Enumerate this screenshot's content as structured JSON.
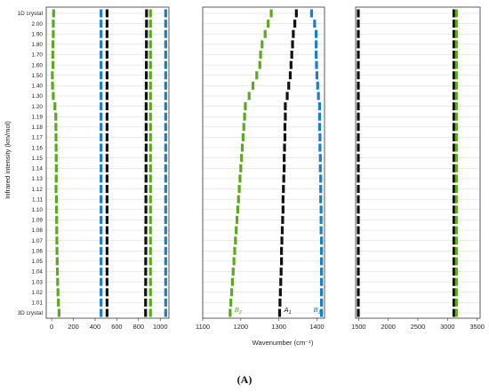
{
  "chart_data": {
    "type": "scatter",
    "ylabel": "Infrared intensity (km/mol)",
    "xlabel": "Wavenumber (cm⁻¹)",
    "caption": "(A)",
    "categories": [
      "3D crystal",
      "1.01",
      "1.02",
      "1.03",
      "1.04",
      "1.05",
      "1.06",
      "1.07",
      "1.08",
      "1.09",
      "1.10",
      "1.11",
      "1.12",
      "1.13",
      "1.14",
      "1.15",
      "1.16",
      "1.17",
      "1.18",
      "1.19",
      "1.20",
      "1.30",
      "1.40",
      "1.50",
      "1.60",
      "1.70",
      "1.80",
      "1.90",
      "2.00",
      "1D crystal"
    ],
    "colors": {
      "green": "#5aaa1e",
      "black": "#111111",
      "blue": "#1a7fc7"
    },
    "panels": [
      {
        "xlim": [
          -50,
          1080
        ],
        "xticks": [
          0,
          200,
          400,
          600,
          800,
          1000
        ],
        "series": [
          {
            "color": "green",
            "values": [
              68,
              62,
              58,
              55,
              53,
              51,
              49,
              48,
              47,
              46,
              45,
              44,
              40,
              42,
              43,
              42,
              41,
              40,
              39,
              38,
              30,
              15,
              8,
              6,
              12,
              10,
              12,
              15,
              15,
              18
            ]
          },
          {
            "color": "blue",
            "values": [
              455,
              455,
              455,
              455,
              455,
              455,
              455,
              455,
              455,
              455,
              455,
              455,
              455,
              455,
              455,
              455,
              455,
              455,
              455,
              455,
              455,
              455,
              455,
              455,
              455,
              455,
              455,
              455,
              455,
              455
            ]
          },
          {
            "color": "black",
            "values": [
              510,
              510,
              510,
              510,
              510,
              510,
              510,
              510,
              510,
              510,
              510,
              510,
              510,
              510,
              510,
              510,
              510,
              510,
              510,
              510,
              510,
              510,
              510,
              510,
              510,
              510,
              510,
              510,
              510,
              510
            ]
          },
          {
            "color": "black",
            "values": [
              865,
              865,
              865,
              866,
              866,
              866,
              867,
              867,
              867,
              868,
              868,
              868,
              868,
              869,
              869,
              869,
              870,
              870,
              870,
              870,
              870,
              871,
              871,
              872,
              872,
              873,
              873,
              873,
              874,
              874
            ]
          },
          {
            "color": "green",
            "values": [
              910,
              910,
              910,
              910,
              910,
              910,
              910,
              910,
              910,
              910,
              910,
              910,
              910,
              910,
              910,
              910,
              910,
              910,
              910,
              910,
              910,
              910,
              910,
              910,
              910,
              910,
              910,
              910,
              910,
              910
            ]
          },
          {
            "color": "blue",
            "values": [
              1050,
              1050,
              1050,
              1050,
              1050,
              1050,
              1050,
              1050,
              1050,
              1050,
              1050,
              1050,
              1050,
              1050,
              1050,
              1050,
              1050,
              1050,
              1050,
              1050,
              1050,
              1050,
              1050,
              1050,
              1050,
              1050,
              1050,
              1050,
              1050,
              1050
            ]
          }
        ]
      },
      {
        "xlim": [
          1100,
          1420
        ],
        "xticks": [
          1100,
          1200,
          1300,
          1400
        ],
        "labels": [
          {
            "text": "B",
            "sub": "2",
            "color": "green"
          },
          {
            "text": "A",
            "sub": "1",
            "color": "black"
          },
          {
            "text": "B",
            "sub": "1",
            "color": "blue"
          }
        ],
        "series": [
          {
            "color": "green",
            "values": [
              1172,
              1174,
              1176,
              1178,
              1180,
              1182,
              1184,
              1186,
              1188,
              1190,
              1192,
              1194,
              1196,
              1198,
              1200,
              1202,
              1204,
              1206,
              1208,
              1210,
              1212,
              1222,
              1232,
              1242,
              1250,
              1252,
              1256,
              1264,
              1272,
              1280
            ]
          },
          {
            "color": "black",
            "values": [
              1302,
              1303,
              1304,
              1305,
              1306,
              1307,
              1307,
              1308,
              1309,
              1310,
              1311,
              1311,
              1312,
              1313,
              1314,
              1314,
              1315,
              1316,
              1316,
              1317,
              1317,
              1322,
              1326,
              1330,
              1332,
              1334,
              1336,
              1338,
              1342,
              1346
            ]
          },
          {
            "color": "blue",
            "values": [
              1412,
              1412,
              1412,
              1412,
              1412,
              1412,
              1412,
              1412,
              1411,
              1411,
              1411,
              1410,
              1410,
              1410,
              1409,
              1409,
              1408,
              1408,
              1407,
              1407,
              1407,
              1404,
              1402,
              1400,
              1399,
              1398,
              1398,
              1398,
              1394,
              1386
            ]
          }
        ]
      },
      {
        "xlim": [
          1450,
          3550
        ],
        "xticks": [
          1500,
          2000,
          2500,
          3000,
          3500
        ],
        "series": [
          {
            "color": "black",
            "values": [
              1495,
              1495,
              1495,
              1495,
              1495,
              1495,
              1495,
              1495,
              1495,
              1495,
              1495,
              1495,
              1495,
              1495,
              1495,
              1495,
              1495,
              1495,
              1495,
              1495,
              1495,
              1495,
              1495,
              1495,
              1495,
              1495,
              1495,
              1495,
              1495,
              1495
            ]
          },
          {
            "color": "black",
            "values": [
              3108,
              3108,
              3108,
              3108,
              3108,
              3108,
              3108,
              3108,
              3108,
              3108,
              3108,
              3108,
              3108,
              3108,
              3108,
              3108,
              3108,
              3108,
              3108,
              3108,
              3108,
              3108,
              3108,
              3108,
              3108,
              3108,
              3108,
              3108,
              3108,
              3108
            ]
          },
          {
            "color": "green",
            "values": [
              3150,
              3150,
              3150,
              3150,
              3150,
              3150,
              3150,
              3150,
              3150,
              3150,
              3150,
              3150,
              3150,
              3150,
              3150,
              3150,
              3150,
              3150,
              3150,
              3150,
              3150,
              3150,
              3150,
              3150,
              3150,
              3150,
              3150,
              3150,
              3150,
              3150
            ]
          }
        ]
      }
    ]
  }
}
